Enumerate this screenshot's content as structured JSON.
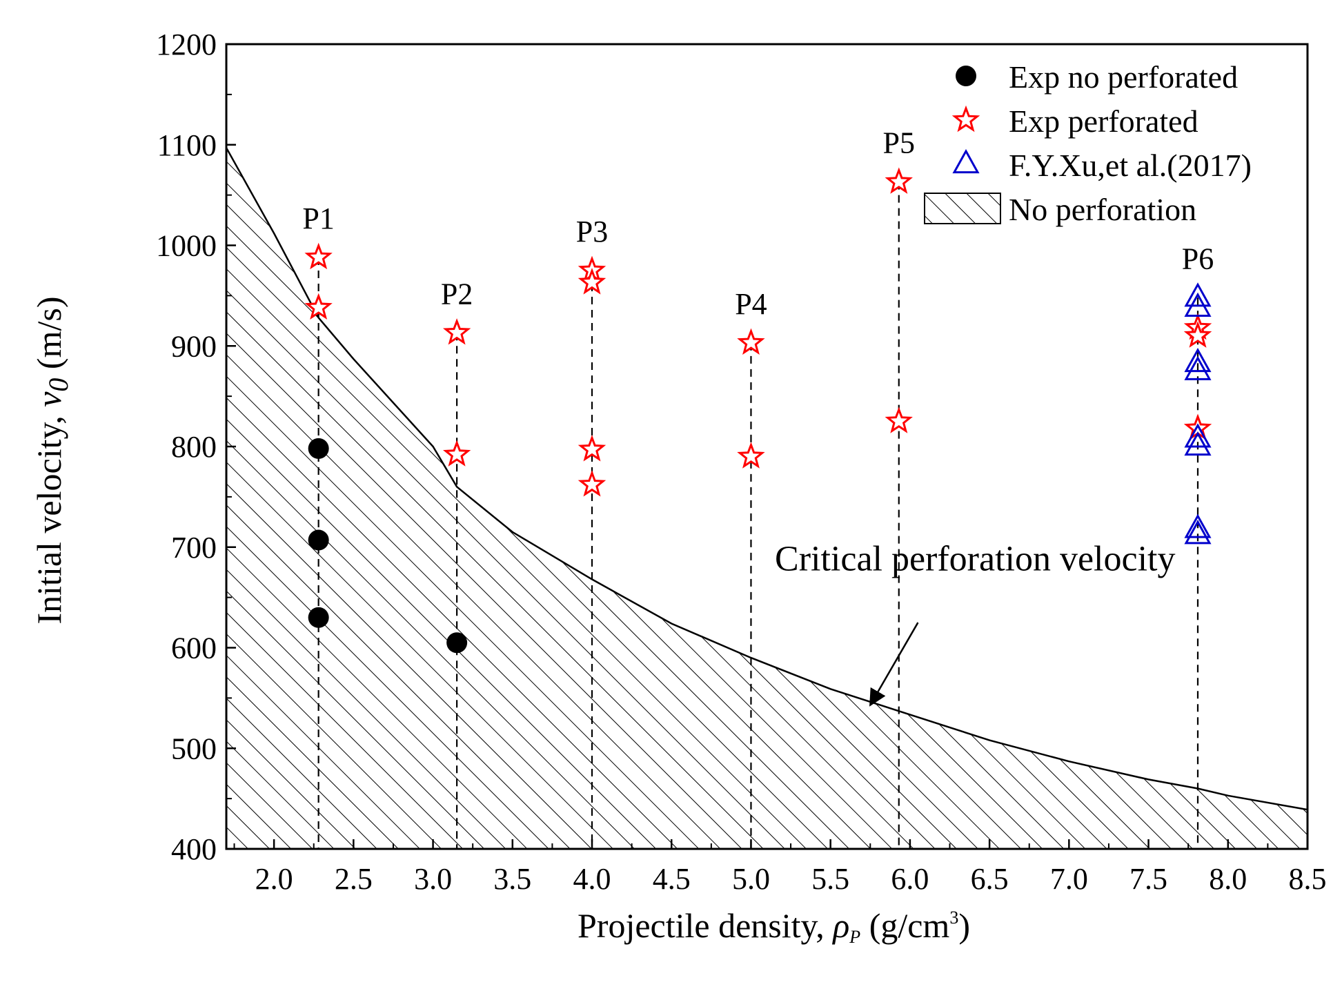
{
  "chart_data": {
    "type": "scatter",
    "title": "",
    "xlabel": {
      "main": "Projectile density, ",
      "symbol": "ρ",
      "sub": "P",
      "unit_prefix": " (g/cm",
      "sup": "3",
      "unit_suffix": ")"
    },
    "ylabel": {
      "main": "Initial velocity, ",
      "symbol": "v",
      "sub": "0",
      "unit": " (m/s)"
    },
    "xlim": [
      1.7,
      8.5
    ],
    "ylim": [
      400,
      1200
    ],
    "xticks": [
      "2.0",
      "2.5",
      "3.0",
      "3.5",
      "4.0",
      "4.5",
      "5.0",
      "5.5",
      "6.0",
      "6.5",
      "7.0",
      "7.5",
      "8.0",
      "8.5"
    ],
    "yticks": [
      "400",
      "500",
      "600",
      "700",
      "800",
      "900",
      "1000",
      "1100",
      "1200"
    ],
    "colors": {
      "no_perforated": "#000000",
      "perforated": "#ff0000",
      "xu": "#0000cc",
      "curve": "#000000"
    },
    "groups": [
      {
        "label": "P1",
        "x": 2.28
      },
      {
        "label": "P2",
        "x": 3.15
      },
      {
        "label": "P3",
        "x": 4.0
      },
      {
        "label": "P4",
        "x": 5.0
      },
      {
        "label": "P5",
        "x": 5.93
      },
      {
        "label": "P6",
        "x": 7.81
      }
    ],
    "series": [
      {
        "name": "Exp no perforated",
        "marker": "circle",
        "points": [
          [
            2.28,
            798
          ],
          [
            2.28,
            707
          ],
          [
            2.28,
            630
          ],
          [
            3.15,
            605
          ]
        ]
      },
      {
        "name": "Exp perforated",
        "marker": "star",
        "points": [
          [
            2.28,
            988
          ],
          [
            2.28,
            938
          ],
          [
            3.15,
            913
          ],
          [
            3.15,
            792
          ],
          [
            4.0,
            975
          ],
          [
            4.0,
            963
          ],
          [
            4.0,
            797
          ],
          [
            4.0,
            762
          ],
          [
            5.0,
            903
          ],
          [
            5.0,
            790
          ],
          [
            5.93,
            1063
          ],
          [
            5.93,
            825
          ],
          [
            7.81,
            918
          ],
          [
            7.81,
            910
          ],
          [
            7.81,
            818
          ]
        ]
      },
      {
        "name": "F.Y.Xu,et al.(2017)",
        "marker": "triangle",
        "points": [
          [
            7.81,
            948
          ],
          [
            7.81,
            938
          ],
          [
            7.81,
            883
          ],
          [
            7.81,
            875
          ],
          [
            7.81,
            808
          ],
          [
            7.81,
            800
          ],
          [
            7.81,
            718
          ],
          [
            7.81,
            712
          ]
        ]
      }
    ],
    "region": {
      "name": "No perforation",
      "label_hatch": true
    },
    "curve": {
      "name": "Critical perforation velocity",
      "samples": [
        [
          1.7,
          1097
        ],
        [
          2.0,
          1012
        ],
        [
          2.28,
          928
        ],
        [
          2.5,
          887
        ],
        [
          3.0,
          800
        ],
        [
          3.15,
          760
        ],
        [
          3.5,
          715
        ],
        [
          4.0,
          668
        ],
        [
          4.5,
          624
        ],
        [
          5.0,
          590
        ],
        [
          5.5,
          559
        ],
        [
          5.93,
          537
        ],
        [
          6.5,
          508
        ],
        [
          7.0,
          487
        ],
        [
          7.5,
          469
        ],
        [
          7.81,
          460
        ],
        [
          8.0,
          453
        ],
        [
          8.5,
          439
        ]
      ]
    },
    "annotation": {
      "text": "Critical perforation velocity",
      "arrow_to": [
        5.75,
        543
      ],
      "arrow_from": [
        6.05,
        625
      ],
      "text_at": [
        5.15,
        677
      ]
    },
    "legend": {
      "position": "top-right",
      "entries": [
        "Exp no perforated",
        "Exp perforated",
        "F.Y.Xu,et al.(2017)",
        "No perforation"
      ]
    }
  }
}
